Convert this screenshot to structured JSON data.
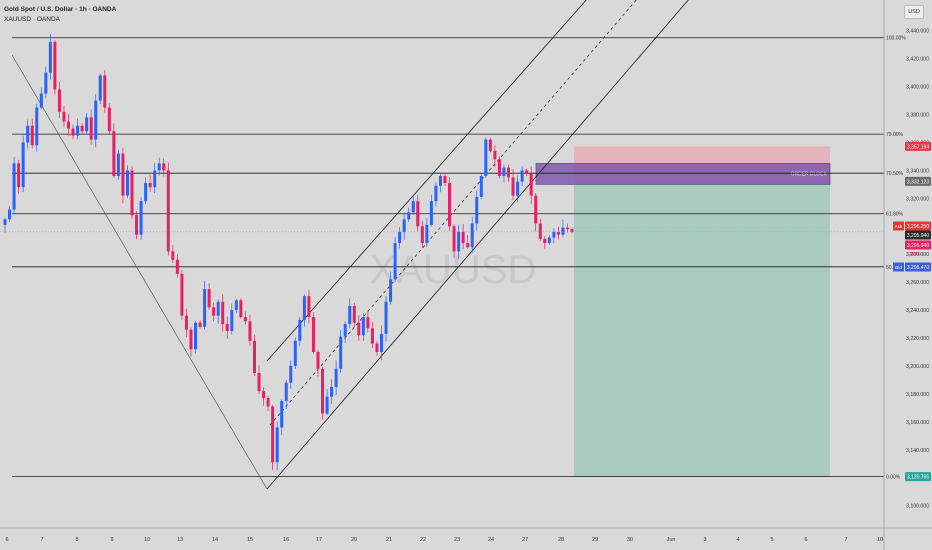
{
  "header": {
    "title": "Gold Spot / U.S. Dollar · 1h · OANDA",
    "symbol_line": "XAUUSD · OANDA"
  },
  "currency_button": "USD",
  "watermark": "XAUUSD",
  "order_block_label": "ORDER BLOCK",
  "colors": {
    "background": "#d9d9d9",
    "up_candle": "#2962ff",
    "down_candle": "#e91e63",
    "order_block": "#7b52ab",
    "target_zone": "#7fbfa7",
    "stop_zone": "#e8a6ae",
    "ask_tag": "#e53935",
    "bid_tag": "#3b5fd9",
    "target_tag": "#26a69a"
  },
  "chart_data": {
    "type": "candlestick",
    "instrument": "XAUUSD",
    "timeframe": "1h",
    "ylim": [
      3084,
      3462
    ],
    "y_ticks": [
      3440,
      3420,
      3400,
      3380,
      3360,
      3340,
      3320,
      3300,
      3280,
      3260,
      3240,
      3220,
      3200,
      3180,
      3160,
      3140,
      3120,
      3100
    ],
    "y_tick_labels": [
      "3,440.000",
      "3,420.000",
      "3,400.000",
      "3,380.000",
      "3,360.000",
      "3,340.000",
      "3,320.000",
      "3,300.000",
      "3,280.000",
      "3,260.000",
      "3,240.000",
      "3,220.000",
      "3,200.000",
      "3,180.000",
      "3,160.000",
      "3,140.000",
      "3,120.000",
      "3,100.000"
    ],
    "x_tick_labels": [
      "6",
      "7",
      "8",
      "9",
      "10",
      "13",
      "14",
      "15",
      "16",
      "17",
      "20",
      "21",
      "22",
      "23",
      "24",
      "27",
      "28",
      "29",
      "30",
      "Jun",
      "3",
      "4",
      "5",
      "6",
      "7",
      "10"
    ],
    "fib_levels": [
      {
        "label": "100.00%",
        "price": 3435.0
      },
      {
        "label": "79.00%",
        "price": 3366.0
      },
      {
        "label": "70.50%",
        "price": 3338.0
      },
      {
        "label": "61.80%",
        "price": 3309.0
      },
      {
        "label": "50.00%",
        "price": 3271.0
      },
      {
        "label": "0.00%",
        "price": 3120.765
      }
    ],
    "price_tags": {
      "stop": "3,357.194",
      "entry": "3,332.123",
      "ask_label": "Ask",
      "ask": "3,296.250",
      "last": "3,295.940",
      "last_alt": "3,295.940",
      "countdown": "30:55",
      "bid_label": "Bid",
      "bid": "3,295.470",
      "target": "3,120.765"
    },
    "order_block": {
      "top": 3345,
      "bottom": 3330
    },
    "position": {
      "entry": 3332.123,
      "stop": 3357.194,
      "target": 3120.765
    },
    "series": [
      {
        "name": "price",
        "values": [
          3305,
          3312,
          3345,
          3328,
          3360,
          3372,
          3358,
          3385,
          3395,
          3410,
          3432,
          3398,
          3382,
          3375,
          3370,
          3365,
          3372,
          3368,
          3378,
          3362,
          3390,
          3408,
          3385,
          3368,
          3336,
          3352,
          3322,
          3340,
          3308,
          3294,
          3318,
          3331,
          3328,
          3340,
          3345,
          3340,
          3282,
          3276,
          3266,
          3236,
          3226,
          3212,
          3231,
          3228,
          3255,
          3242,
          3236,
          3246,
          3230,
          3225,
          3240,
          3247,
          3235,
          3232,
          3218,
          3195,
          3182,
          3177,
          3171,
          3131,
          3156,
          3175,
          3188,
          3200,
          3218,
          3233,
          3250,
          3235,
          3210,
          3198,
          3166,
          3178,
          3185,
          3198,
          3221,
          3230,
          3243,
          3231,
          3222,
          3235,
          3227,
          3216,
          3210,
          3223,
          3246,
          3262,
          3288,
          3296,
          3305,
          3310,
          3318,
          3300,
          3288,
          3301,
          3318,
          3329,
          3336,
          3331,
          3300,
          3282,
          3296,
          3288,
          3285,
          3302,
          3321,
          3336,
          3362,
          3354,
          3348,
          3336,
          3342,
          3335,
          3322,
          3332,
          3340,
          3338,
          3322,
          3302,
          3291,
          3288,
          3292,
          3296,
          3294,
          3299,
          3298,
          3296
        ]
      }
    ]
  }
}
